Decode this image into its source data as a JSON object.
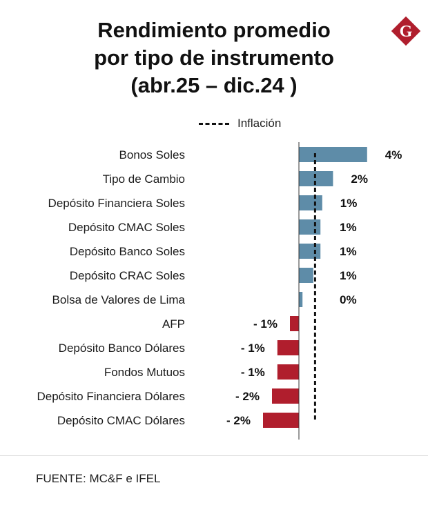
{
  "header": {
    "title_lines": [
      "Rendimiento promedio",
      "por tipo de instrumento",
      "(abr.25 – dic.24 )"
    ],
    "logo_letter": "G",
    "logo_color": "#b01e2d"
  },
  "legend": {
    "label": "Inflación"
  },
  "footer": {
    "source": "FUENTE: MC&F e IFEL"
  },
  "colors": {
    "positive": "#5e8ca8",
    "negative": "#b01e2d",
    "inflation_line": "#111111"
  },
  "chart_data": {
    "type": "bar",
    "orientation": "horizontal",
    "title": "Rendimiento promedio por tipo de instrumento (abr.25 – dic.24 )",
    "categories": [
      "Bonos Soles",
      "Tipo de Cambio",
      "Depósito Financiera Soles",
      "Depósito CMAC Soles",
      "Depósito Banco Soles",
      "Depósito CRAC Soles",
      "Bolsa de Valores de Lima",
      "AFP",
      "Depósito Banco Dólares",
      "Fondos Mutuos",
      "Depósito Financiera Dólares",
      "Depósito CMAC Dólares"
    ],
    "values": [
      3.8,
      1.9,
      1.3,
      1.2,
      1.2,
      0.8,
      0.2,
      -0.5,
      -1.2,
      -1.2,
      -1.5,
      -2.0
    ],
    "value_labels": [
      "4%",
      "2%",
      "1%",
      "1%",
      "1%",
      "1%",
      "0%",
      "- 1%",
      "- 1%",
      "- 1%",
      "- 2%",
      "- 2%"
    ],
    "reference_line": {
      "name": "Inflación",
      "value": 0.9
    },
    "xlim": [
      -2.3,
      4.2
    ],
    "grid": false,
    "legend_position": "top"
  }
}
